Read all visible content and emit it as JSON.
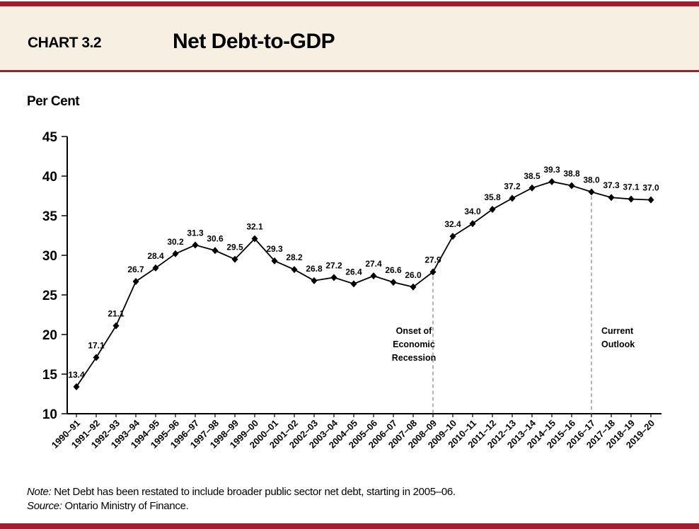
{
  "header": {
    "chart_number": "CHART 3.2",
    "title": "Net Debt-to-GDP"
  },
  "colors": {
    "accent": "#a51c30",
    "header_bg": "#f7f0e2",
    "line": "#000000"
  },
  "chart_data": {
    "type": "line",
    "title": "Net Debt-to-GDP",
    "ylabel": "Per Cent",
    "xlabel": "",
    "ylim": [
      10,
      45
    ],
    "yticks": [
      10,
      15,
      20,
      25,
      30,
      35,
      40,
      45
    ],
    "grid": false,
    "categories": [
      "1990–91",
      "1991–92",
      "1992–93",
      "1993–94",
      "1994–95",
      "1995–96",
      "1996–97",
      "1997–98",
      "1998–99",
      "1999–00",
      "2000–01",
      "2001–02",
      "2002–03",
      "2003–04",
      "2004–05",
      "2005–06",
      "2006–07",
      "2007–08",
      "2008–09",
      "2009–10",
      "2010–11",
      "2011–12",
      "2012–13",
      "2013–14",
      "2014–15",
      "2015–16",
      "2016–17",
      "2017–18",
      "2018–19",
      "2019–20"
    ],
    "values": [
      13.4,
      17.1,
      21.1,
      26.7,
      28.4,
      30.2,
      31.3,
      30.6,
      29.5,
      32.1,
      29.3,
      28.2,
      26.8,
      27.2,
      26.4,
      27.4,
      26.6,
      26.0,
      27.9,
      32.4,
      34.0,
      35.8,
      37.2,
      38.5,
      39.3,
      38.8,
      38.0,
      37.3,
      37.1,
      37.0
    ],
    "annotations": [
      {
        "category": "2008–09",
        "lines": [
          "Onset of",
          "Economic",
          "Recession"
        ]
      },
      {
        "category": "2016–17",
        "lines": [
          "Current",
          "Outlook"
        ]
      }
    ]
  },
  "footer": {
    "note_label": "Note:",
    "note_text": " Net Debt has been restated to include broader public sector net debt, starting in 2005–06.",
    "source_label": "Source:",
    "source_text": " Ontario Ministry of Finance."
  }
}
